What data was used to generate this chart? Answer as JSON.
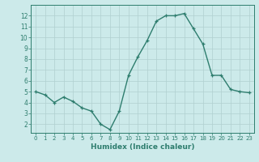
{
  "x": [
    0,
    1,
    2,
    3,
    4,
    5,
    6,
    7,
    8,
    9,
    10,
    11,
    12,
    13,
    14,
    15,
    16,
    17,
    18,
    19,
    20,
    21,
    22,
    23
  ],
  "y": [
    5.0,
    4.7,
    4.0,
    4.5,
    4.1,
    3.5,
    3.2,
    2.0,
    1.5,
    3.2,
    6.5,
    8.2,
    9.7,
    11.5,
    12.0,
    12.0,
    12.2,
    10.8,
    9.4,
    6.5,
    6.5,
    5.2,
    5.0,
    4.9
  ],
  "line_color": "#2e7d6e",
  "marker_color": "#2e7d6e",
  "bg_color": "#cceaea",
  "grid_color": "#b0d0d0",
  "xlabel": "Humidex (Indice chaleur)",
  "ylabel_ticks": [
    2,
    3,
    4,
    5,
    6,
    7,
    8,
    9,
    10,
    11,
    12
  ],
  "xlim": [
    -0.5,
    23.5
  ],
  "ylim": [
    1.2,
    13.0
  ],
  "xticks": [
    0,
    1,
    2,
    3,
    4,
    5,
    6,
    7,
    8,
    9,
    10,
    11,
    12,
    13,
    14,
    15,
    16,
    17,
    18,
    19,
    20,
    21,
    22,
    23
  ],
  "xtick_labels": [
    "0",
    "1",
    "2",
    "3",
    "4",
    "5",
    "6",
    "7",
    "8",
    "9",
    "10",
    "11",
    "12",
    "13",
    "14",
    "15",
    "16",
    "17",
    "18",
    "19",
    "20",
    "21",
    "22",
    "23"
  ]
}
